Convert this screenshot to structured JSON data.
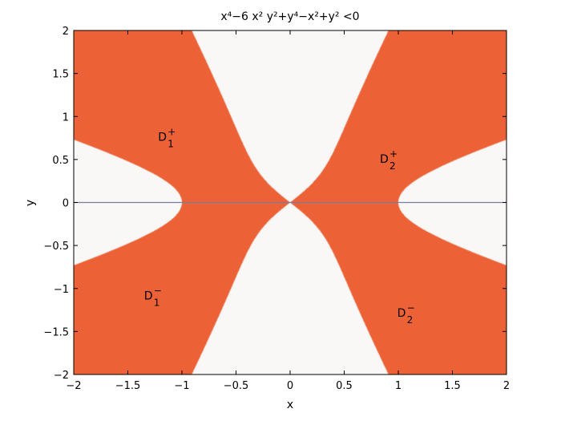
{
  "chart_data": {
    "type": "region",
    "title": "x⁴−6 x² y²+y⁴−x²+y² <0",
    "inequality": "x^4-6*x^2*y^2+y^4-x^2+y^2<0",
    "xlabel": "x",
    "ylabel": "y",
    "xlim": [
      -2,
      2
    ],
    "ylim": [
      -2,
      2
    ],
    "xticks": [
      -2,
      -1.5,
      -1,
      -0.5,
      0,
      0.5,
      1,
      1.5,
      2
    ],
    "yticks": [
      -2,
      -1.5,
      -1,
      -0.5,
      0,
      0.5,
      1,
      1.5,
      2
    ],
    "xtick_labels": [
      "−2",
      "−1.5",
      "−1",
      "−0.5",
      "0",
      "0.5",
      "1",
      "1.5",
      "2"
    ],
    "ytick_labels": [
      "−2",
      "−1.5",
      "−1",
      "−0.5",
      "0",
      "0.5",
      "1",
      "1.5",
      "2"
    ],
    "grid": false,
    "reference_line": {
      "y": 0
    },
    "colors": {
      "region": "#EC6236",
      "background": "#F9F8F7",
      "reference_line": "#7A7E9E"
    },
    "annotations": [
      {
        "base": "D",
        "sup": "+",
        "sub": "1",
        "x": -1.22,
        "y": 0.72
      },
      {
        "base": "D",
        "sup": "+",
        "sub": "2",
        "x": 0.83,
        "y": 0.46
      },
      {
        "base": "D",
        "sup": "−",
        "sub": "1",
        "x": -1.35,
        "y": -1.13
      },
      {
        "base": "D",
        "sup": "−",
        "sub": "2",
        "x": 0.99,
        "y": -1.33
      }
    ]
  }
}
